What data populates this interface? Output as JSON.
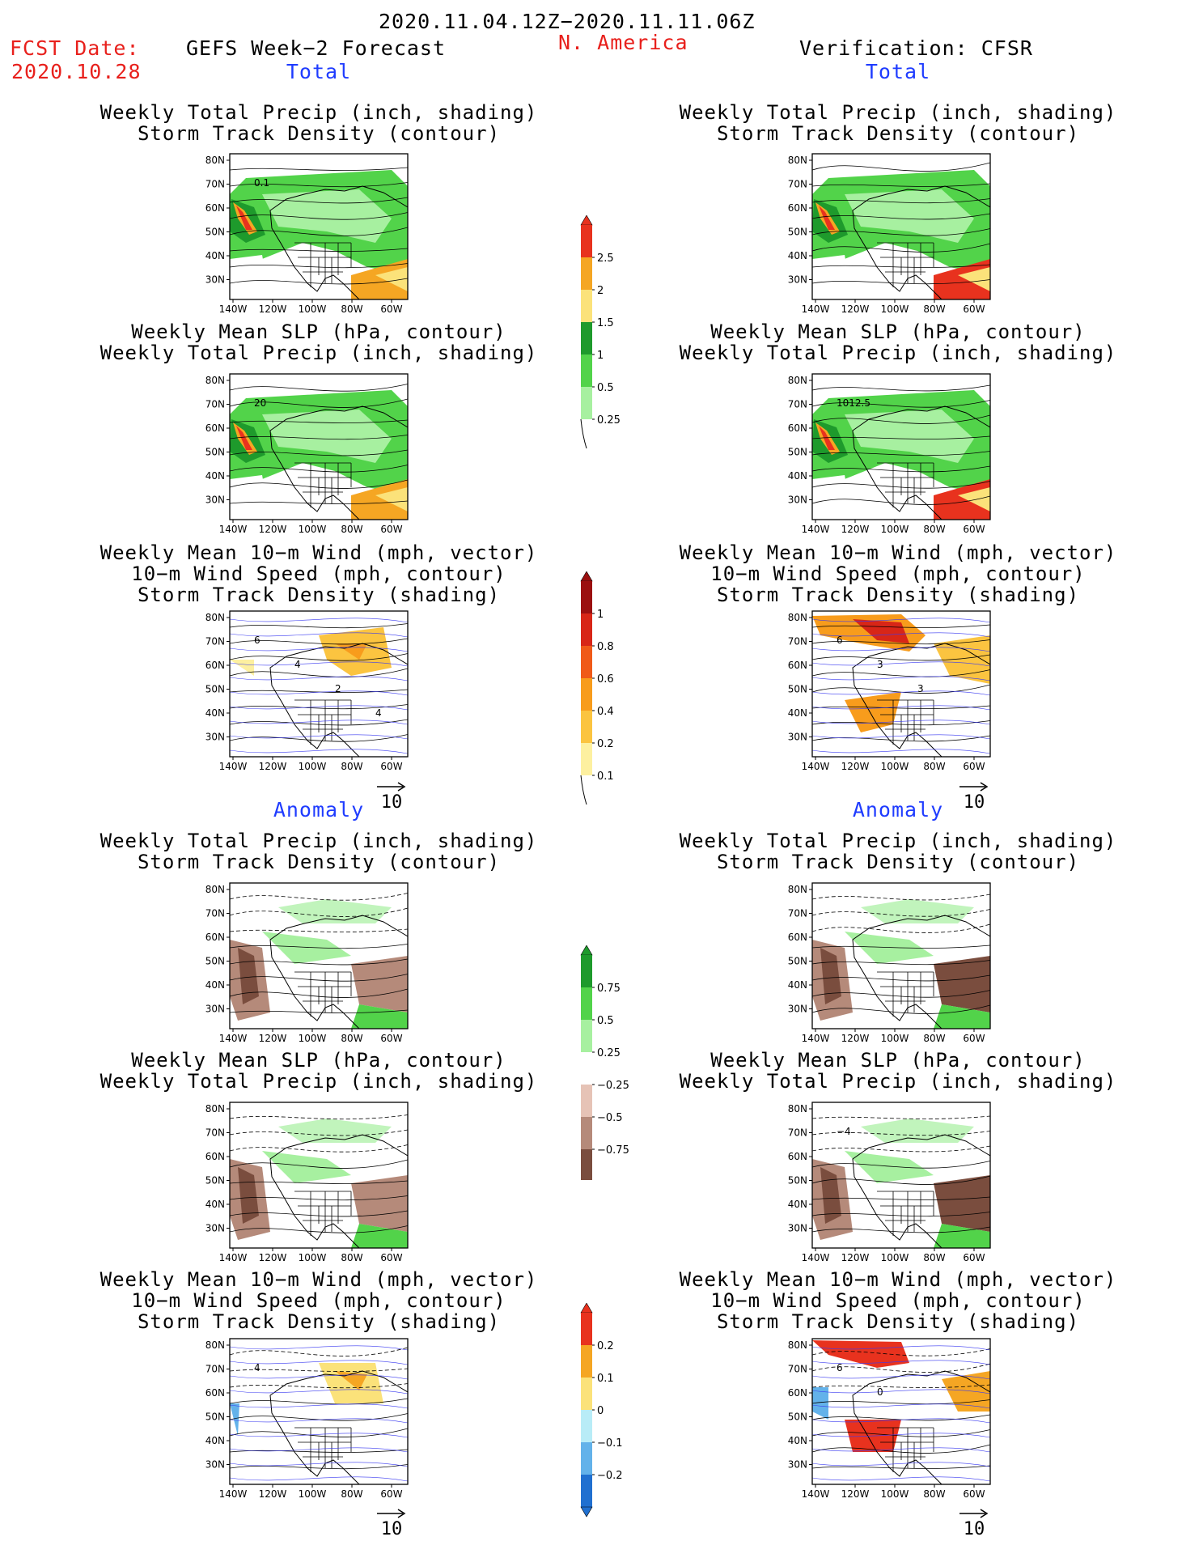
{
  "header": {
    "date_range": "2020.11.04.12Z−2020.11.11.06Z",
    "fcst_label": "FCST Date:",
    "fcst_date": "2020.10.28",
    "left_title": "GEFS Week−2 Forecast",
    "region": "N. America",
    "right_title": "Verification: CFSR",
    "total_left": "Total",
    "total_right": "Total",
    "anomaly_left": "Anomaly",
    "anomaly_right": "Anomaly"
  },
  "titles": {
    "precip_track": [
      "Weekly Total Precip (inch, shading)",
      "Storm Track Density (contour)"
    ],
    "slp_precip": [
      "Weekly Mean SLP (hPa, contour)",
      "Weekly Total Precip (inch, shading)"
    ],
    "wind_track": [
      "Weekly Mean 10−m Wind (mph, vector)",
      "10−m Wind Speed (mph, contour)",
      "Storm Track Density (shading)"
    ]
  },
  "axes": {
    "lat_labels": [
      "80N",
      "70N",
      "60N",
      "50N",
      "40N",
      "30N"
    ],
    "lon_labels": [
      "140W",
      "120W",
      "100W",
      "80W",
      "60W"
    ]
  },
  "panels": [
    {
      "id": "fcst-total-precip",
      "contour_labels": [
        "0.1"
      ]
    },
    {
      "id": "fcst-total-slp",
      "contour_labels": [
        "20"
      ]
    },
    {
      "id": "fcst-total-wind",
      "contour_labels": [
        "6",
        "4",
        "2",
        "4"
      ]
    },
    {
      "id": "verif-total-precip",
      "contour_labels": []
    },
    {
      "id": "verif-total-slp",
      "contour_labels": [
        "1012.5"
      ]
    },
    {
      "id": "verif-total-wind",
      "contour_labels": [
        "6",
        "3",
        "3"
      ]
    },
    {
      "id": "fcst-anom-precip",
      "contour_labels": []
    },
    {
      "id": "fcst-anom-slp",
      "contour_labels": []
    },
    {
      "id": "fcst-anom-wind",
      "contour_labels": [
        "4"
      ]
    },
    {
      "id": "verif-anom-precip",
      "contour_labels": []
    },
    {
      "id": "verif-anom-slp",
      "contour_labels": [
        "−4"
      ]
    },
    {
      "id": "verif-anom-wind",
      "contour_labels": [
        "6",
        "0"
      ]
    }
  ],
  "vector_ref": "10",
  "colorbars": {
    "precip_total": {
      "labels": [
        "2.5",
        "2",
        "1.5",
        "1",
        "0.5",
        "0.25"
      ],
      "colors": [
        "#e8321e",
        "#f5a623",
        "#fbe27a",
        "#1e9a2c",
        "#52d34a",
        "#a7f0a0"
      ]
    },
    "track_total": {
      "labels": [
        "1",
        "0.8",
        "0.6",
        "0.4",
        "0.2",
        "0.1"
      ],
      "colors": [
        "#9b1010",
        "#d82617",
        "#f05a18",
        "#f89c1c",
        "#fbc440",
        "#fdf0a0"
      ]
    },
    "precip_anom": {
      "labels": [
        "0.75",
        "0.5",
        "0.25",
        "−0.25",
        "−0.5",
        "−0.75"
      ],
      "colors": [
        "#1e9a2c",
        "#52d34a",
        "#a7f0a0",
        "#ffffff",
        "#e6c3b6",
        "#b58a7a",
        "#7a4d3e"
      ]
    },
    "track_anom": {
      "labels": [
        "0.2",
        "0.1",
        "0",
        "−0.1",
        "−0.2"
      ],
      "colors": [
        "#e8321e",
        "#f5a623",
        "#fbe27a",
        "#b8ecf7",
        "#63b2ea",
        "#2070d0"
      ]
    }
  }
}
